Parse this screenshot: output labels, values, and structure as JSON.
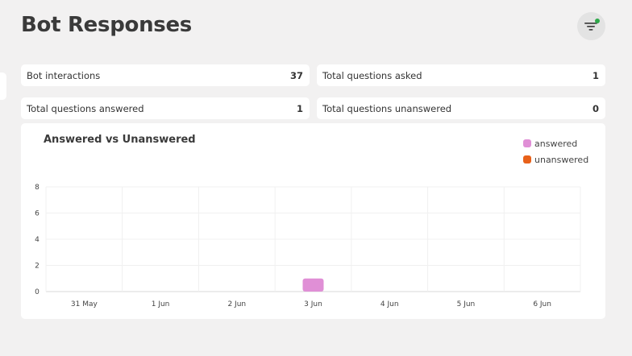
{
  "header": {
    "title": "Bot Responses"
  },
  "filter": {
    "icon": "filter-icon",
    "indicator_color": "#2ea84a"
  },
  "stats": [
    {
      "label": "Bot interactions",
      "value": "37"
    },
    {
      "label": "Total questions asked",
      "value": "1"
    },
    {
      "label": "Total questions answered",
      "value": "1"
    },
    {
      "label": "Total questions unanswered",
      "value": "0"
    }
  ],
  "chart_data": {
    "type": "bar",
    "title": "Answered vs Unanswered",
    "categories": [
      "31 May",
      "1 Jun",
      "2 Jun",
      "3 Jun",
      "4 Jun",
      "5 Jun",
      "6 Jun"
    ],
    "series": [
      {
        "name": "answered",
        "color": "#e08fd6",
        "values": [
          0,
          0,
          0,
          1,
          0,
          0,
          0
        ]
      },
      {
        "name": "unanswered",
        "color": "#e8611a",
        "values": [
          0,
          0,
          0,
          0,
          0,
          0,
          0
        ]
      }
    ],
    "yticks": [
      "0",
      "2",
      "4",
      "6",
      "8"
    ],
    "ylim": [
      0,
      8
    ],
    "stacked": true,
    "grid": true,
    "legend": "top-right",
    "xlabel": "",
    "ylabel": ""
  }
}
